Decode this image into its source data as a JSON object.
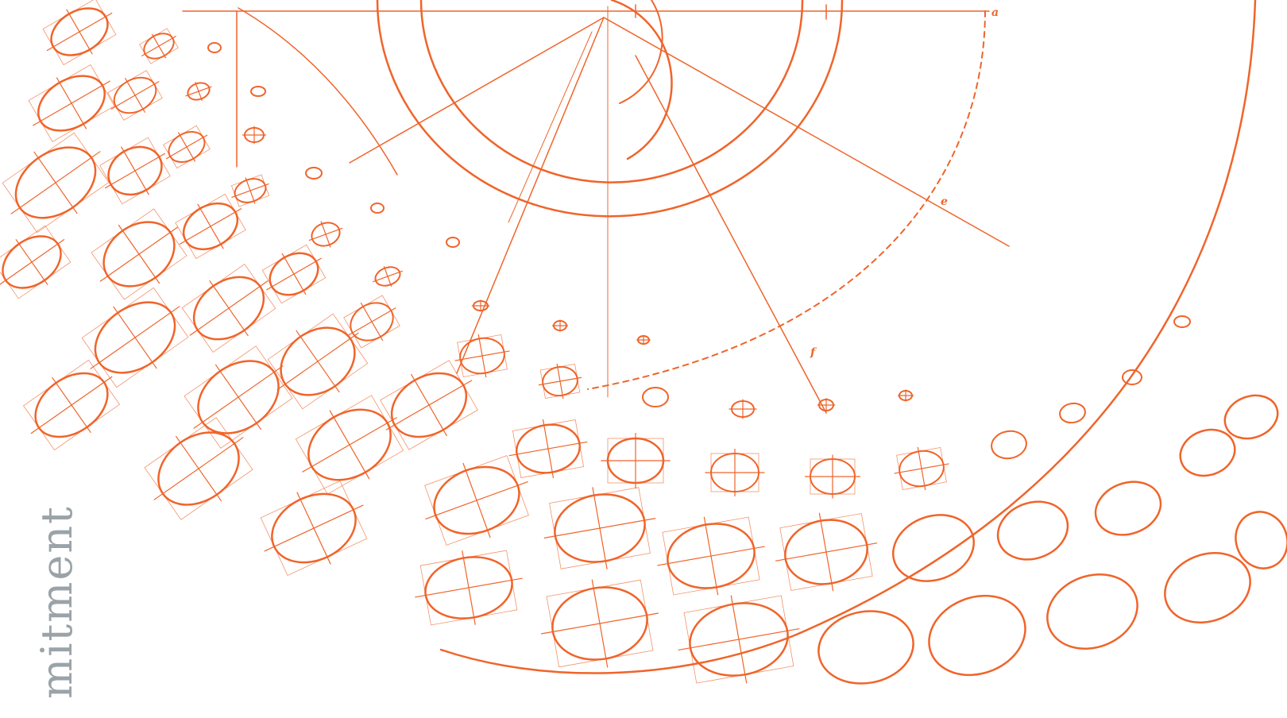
{
  "vertical_word": "mitment",
  "point_labels": {
    "a": "a",
    "e": "e",
    "f": "f"
  },
  "colors": {
    "ink": "#f0642a",
    "gray_text": "#9aa3a8",
    "background": "#ffffff"
  }
}
